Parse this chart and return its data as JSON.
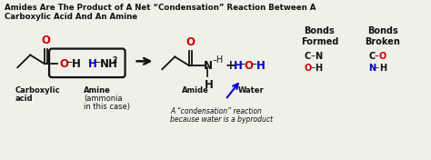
{
  "bg_color": "#f0efe8",
  "title_line1": "Amides Are The Product of A Net “Condensation” Reaction Between A",
  "title_line2": "Carboxylic Acid And An Amine",
  "carboxylic_label1": "Carboxylic",
  "carboxylic_label2": "acid",
  "amine_label1": "Amine",
  "amine_label2": "(ammonia",
  "amine_label3": "in this case)",
  "amide_label": "Amide",
  "water_label": "Water",
  "condensation_note1": "A “condensation” reaction",
  "condensation_note2": "because water is a byproduct",
  "bonds_formed_title": "Bonds\nFormed",
  "bonds_broken_title": "Bonds\nBroken",
  "color_black": "#111111",
  "color_red": "#cc0000",
  "color_blue": "#0000cc",
  "fig_width": 4.74,
  "fig_height": 1.76
}
